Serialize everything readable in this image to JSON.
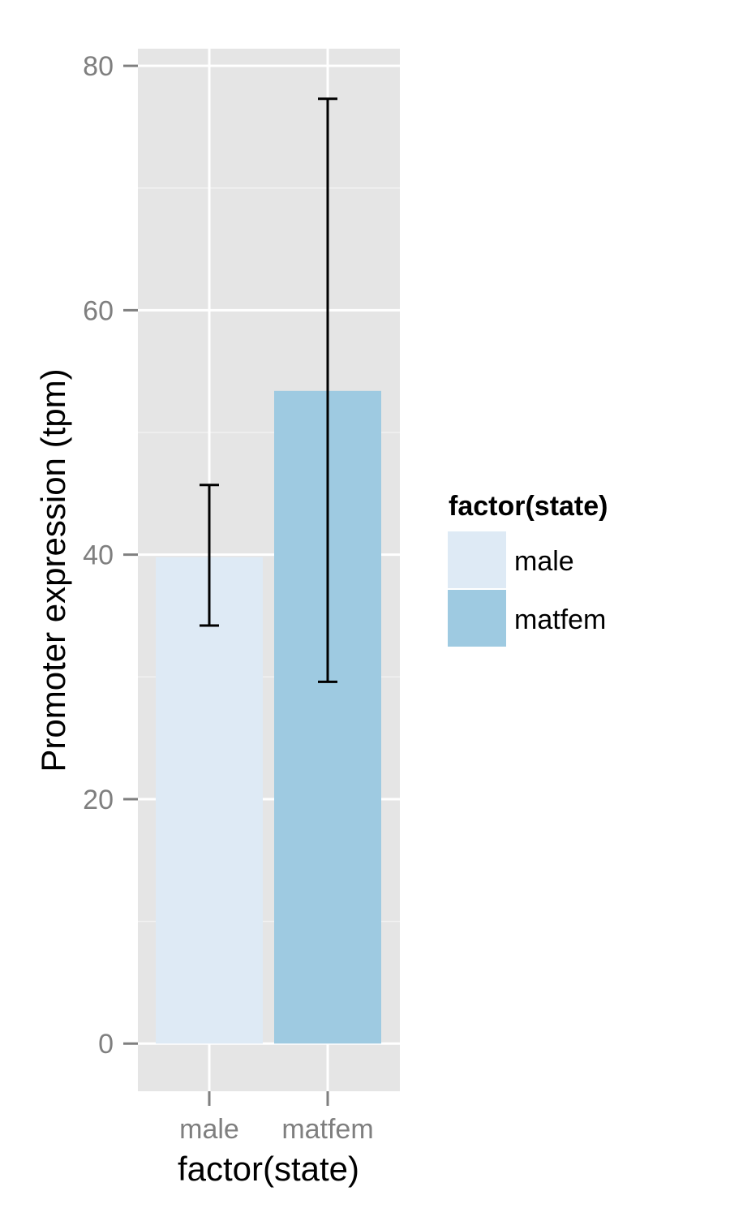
{
  "chart_data": {
    "type": "bar",
    "categories": [
      "male",
      "matfem"
    ],
    "values": [
      39.8,
      53.4
    ],
    "error_low": [
      34.2,
      29.6
    ],
    "error_high": [
      45.7,
      77.3
    ],
    "colors": [
      "#deeaf5",
      "#9ecae1"
    ],
    "xlabel": "factor(state)",
    "ylabel": "Promoter expression (tpm)",
    "ylim": [
      -3.9,
      81.4
    ],
    "yticks": [
      0,
      20,
      40,
      60,
      80
    ],
    "grid": true,
    "panel_background": "#e5e5e5",
    "legend": {
      "title": "factor(state)",
      "placement": "right",
      "entries": [
        "male",
        "matfem"
      ]
    }
  }
}
